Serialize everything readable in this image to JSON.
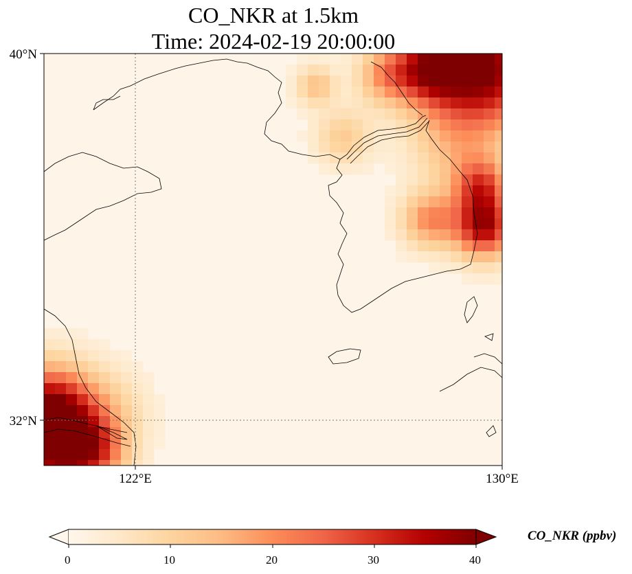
{
  "title": {
    "line1": "CO_NKR at 1.5km",
    "line2": "Time: 2024-02-19 20:00:00"
  },
  "map": {
    "lon_range": [
      120,
      130
    ],
    "lat_range": [
      31,
      40
    ],
    "lat_ticks": [
      {
        "value": 40,
        "label": "40°N"
      },
      {
        "value": 32,
        "label": "32°N"
      }
    ],
    "lon_ticks": [
      {
        "value": 122,
        "label": "122°E"
      },
      {
        "value": 130,
        "label": "130°E"
      }
    ],
    "gridlines": {
      "lon": [
        122
      ],
      "lat": [
        32
      ],
      "style": "dotted"
    }
  },
  "colorbar": {
    "label": "CO_NKR (ppbv)",
    "colormap": "OrRd",
    "min": 0,
    "max": 40,
    "extend": "both",
    "ticks": [
      "0",
      "10",
      "20",
      "30",
      "40"
    ]
  },
  "colors": {
    "cmap_stops": [
      "#fff7ec",
      "#fee8c8",
      "#fdd49e",
      "#fdbb84",
      "#fc8d59",
      "#ef6548",
      "#d7301f",
      "#b30000",
      "#7f0000"
    ]
  }
}
